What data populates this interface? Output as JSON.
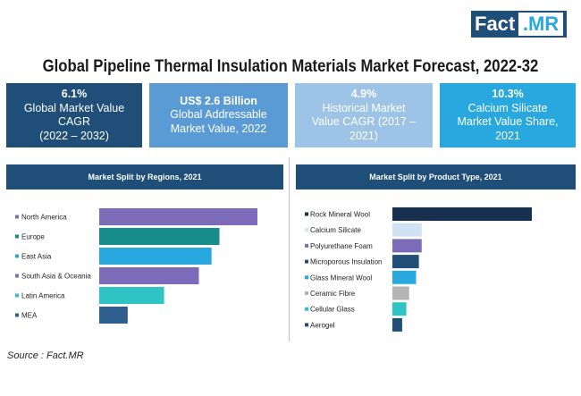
{
  "logo": {
    "fact": "Fact",
    "mr": ".MR"
  },
  "title": "Global Pipeline Thermal Insulation Materials Market Forecast, 2022-32",
  "kpis": [
    {
      "value": "6.1%",
      "line1": "Global Market Value",
      "line2": "CAGR",
      "line3": "(2022 – 2032)"
    },
    {
      "value": "US$ 2.6 Billion",
      "line1": "Global Addressable",
      "line2": "Market Value, 2022",
      "line3": ""
    },
    {
      "value": "4.9%",
      "line1": "Historical Market",
      "line2": "Value CAGR (2017 –",
      "line3": "2021)"
    },
    {
      "value": "10.3%",
      "line1": "Calcium Silicate",
      "line2": "Market Value Share,",
      "line3": "2021"
    }
  ],
  "source": "Source : Fact.MR",
  "chart_data": [
    {
      "type": "bar",
      "orientation": "horizontal",
      "title": "Market Split by Regions, 2021",
      "categories": [
        "North America",
        "Europe",
        "East Asia",
        "South Asia & Oceania",
        "Latin America",
        "MEA"
      ],
      "values": [
        100,
        76,
        71,
        63,
        41,
        18
      ],
      "colors": [
        "#7b6bb8",
        "#168c8c",
        "#29a8e0",
        "#7b6bb8",
        "#2ec4c4",
        "#2f5f8f"
      ],
      "xlim": [
        0,
        100
      ]
    },
    {
      "type": "bar",
      "orientation": "horizontal",
      "title": "Market Split by Product Type, 2021",
      "categories": [
        "Rock Mineral Wool",
        "Calcium Silicate",
        "Polyurethane Foam",
        "Microporous Insulation",
        "Glass Mineral Wool",
        "Ceramic Fibre",
        "Cellular Glass",
        "Aerogel"
      ],
      "values": [
        100,
        21,
        21,
        19,
        17,
        12,
        10,
        7
      ],
      "colors": [
        "#17304f",
        "#cfe3f5",
        "#7b6bb8",
        "#1f4e79",
        "#29a8e0",
        "#b3b3b3",
        "#2ec4c4",
        "#1f4e79"
      ],
      "xlim": [
        0,
        100
      ]
    }
  ]
}
